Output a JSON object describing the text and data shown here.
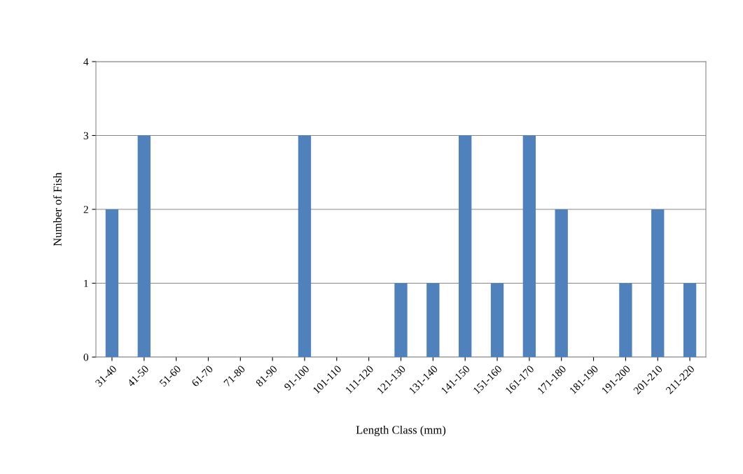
{
  "chart_data": {
    "type": "bar",
    "xlabel": "Length Class (mm)",
    "ylabel": "Number of Fish",
    "categories": [
      "31-40",
      "41-50",
      "51-60",
      "61-70",
      "71-80",
      "81-90",
      "91-100",
      "101-110",
      "111-120",
      "121-130",
      "131-140",
      "141-150",
      "151-160",
      "161-170",
      "171-180",
      "181-190",
      "191-200",
      "201-210",
      "211-220"
    ],
    "values": [
      2,
      3,
      0,
      0,
      0,
      0,
      3,
      0,
      0,
      1,
      1,
      3,
      1,
      3,
      2,
      0,
      1,
      2,
      1
    ],
    "color": "#4f81bd",
    "ylim": [
      0,
      4
    ],
    "yticks": [
      0,
      1,
      2,
      3,
      4
    ],
    "grid": "y",
    "legend": false
  }
}
